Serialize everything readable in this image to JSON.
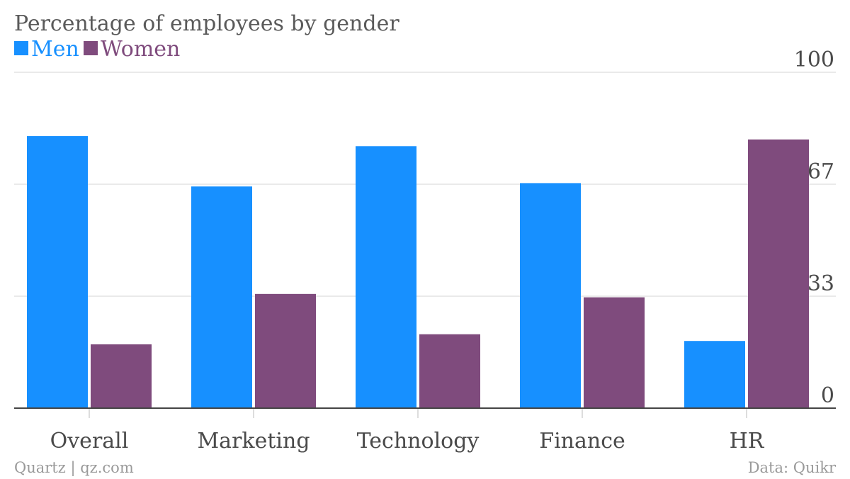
{
  "chart_data": {
    "type": "bar",
    "title": "Percentage of employees by gender",
    "categories": [
      "Overall",
      "Marketing",
      "Technology",
      "Finance",
      "HR"
    ],
    "series": [
      {
        "name": "Men",
        "color": "#1790ff",
        "values": [
          81,
          66,
          78,
          67,
          20
        ]
      },
      {
        "name": "Women",
        "color": "#7f4b7d",
        "values": [
          19,
          34,
          22,
          33,
          80
        ]
      }
    ],
    "ylim": [
      0,
      100
    ],
    "yticks": [
      {
        "value": 0,
        "label": "0"
      },
      {
        "value": 33.33,
        "label": "33"
      },
      {
        "value": 66.67,
        "label": "67"
      },
      {
        "value": 100,
        "label": "100"
      }
    ],
    "grid": true,
    "legend_position": "top-left",
    "xlabel": "",
    "ylabel": ""
  },
  "footer": {
    "source_left": "Quartz | qz.com",
    "source_right": "Data: Quikr"
  },
  "colors": {
    "grid": "#e3e3e3",
    "axis": "#444444"
  }
}
